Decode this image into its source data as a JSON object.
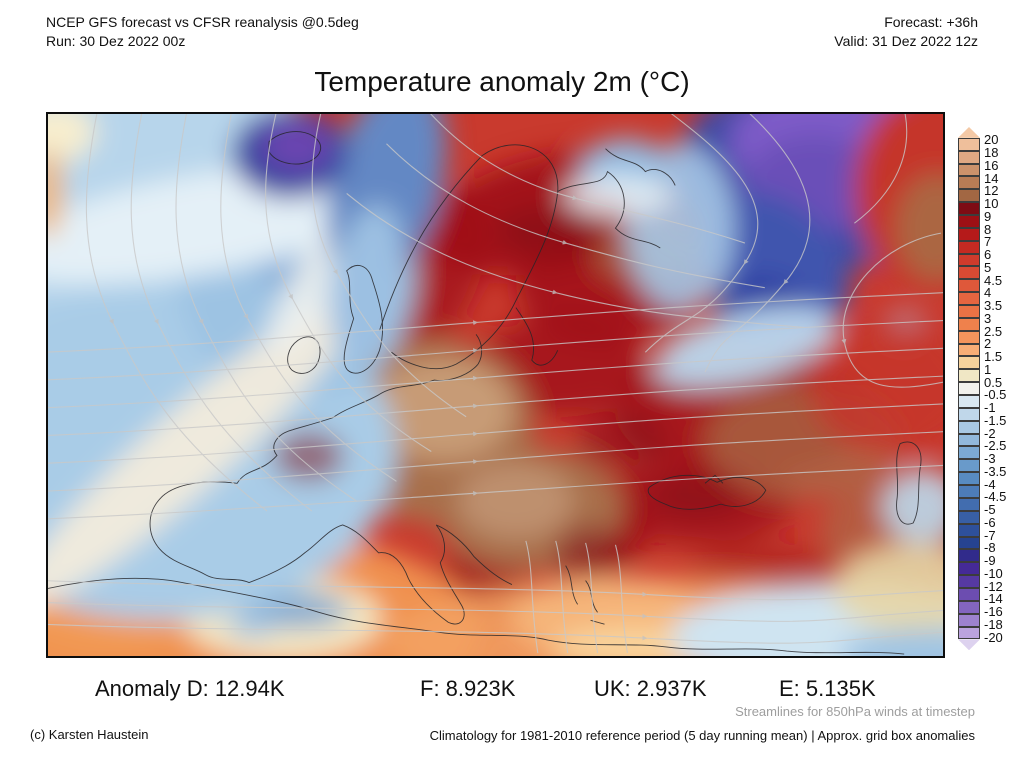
{
  "header": {
    "model_line": "NCEP GFS forecast vs CFSR reanalysis @0.5deg",
    "run_line": "Run: 30 Dez 2022 00z",
    "forecast_line": "Forecast: +36h",
    "valid_line": "Valid: 31 Dez 2022 12z"
  },
  "title": "Temperature anomaly 2m (°C)",
  "colorbar": {
    "unit": "°C",
    "ticks": [
      "20",
      "18",
      "16",
      "14",
      "12",
      "10",
      "9",
      "8",
      "7",
      "6",
      "5",
      "4.5",
      "4",
      "3.5",
      "3",
      "2.5",
      "2",
      "1.5",
      "1",
      "0.5",
      "-0.5",
      "-1",
      "-1.5",
      "-2",
      "-2.5",
      "-3",
      "-3.5",
      "-4",
      "-4.5",
      "-5",
      "-6",
      "-7",
      "-8",
      "-9",
      "-10",
      "-12",
      "-14",
      "-16",
      "-18",
      "-20"
    ],
    "segment_colors": [
      "#f4c9a6",
      "#efbf9b",
      "#dfa883",
      "#cc926b",
      "#b87c55",
      "#a26743",
      "#7e0c14",
      "#9d1015",
      "#b51a1a",
      "#c42a22",
      "#cf3b2c",
      "#d84a33",
      "#df583a",
      "#e56540",
      "#ea7245",
      "#ef814c",
      "#f3945c",
      "#f7ad76",
      "#f6d29c",
      "#f0e7c5",
      "#f2f1ec",
      "#d9e7f1",
      "#c0d7ea",
      "#a9c8e3",
      "#92b8db",
      "#7ca9d3",
      "#699aca",
      "#588bc1",
      "#4d7cb8",
      "#426daf",
      "#385fa5",
      "#2e509b",
      "#264390",
      "#312b8b",
      "#452a97",
      "#5639a2",
      "#6c4db0",
      "#8365bf",
      "#9d82ce",
      "#bba3de",
      "#ddd2ef"
    ]
  },
  "anomalies": [
    "Anomaly D: 12.94K",
    "F: 8.923K",
    "UK: 2.937K",
    "E: 5.135K"
  ],
  "footer": {
    "credit": "(c) Karsten Haustein",
    "streamlines_note": "Streamlines for 850hPa winds at timestep",
    "climatology_note": "Climatology for 1981-2010 reference period (5 day running mean) | Approx. grid box anomalies"
  }
}
